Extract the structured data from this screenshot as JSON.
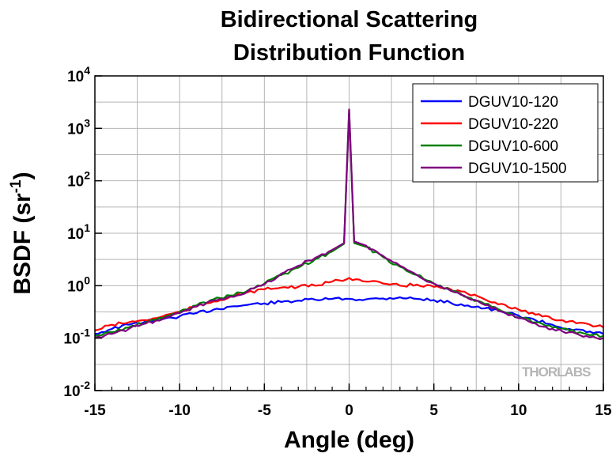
{
  "chart_data": {
    "type": "line",
    "title_lines": [
      "Bidirectional Scattering",
      "Distribution Function"
    ],
    "xlabel": "Angle (deg)",
    "ylabel": "BSDF (sr",
    "ylabel_sup": "-1",
    "ylabel_suffix": ")",
    "xlim": [
      -15,
      15
    ],
    "ylim": [
      0.01,
      10000
    ],
    "yscale": "log",
    "grid": true,
    "legend_position": "top-right",
    "watermark": "THORLABS",
    "x_ticks": [
      {
        "value": -15,
        "label": "-15"
      },
      {
        "value": -10,
        "label": "-10"
      },
      {
        "value": -5,
        "label": "-5"
      },
      {
        "value": 0,
        "label": "0"
      },
      {
        "value": 5,
        "label": "5"
      },
      {
        "value": 10,
        "label": "10"
      },
      {
        "value": 15,
        "label": "15"
      }
    ],
    "y_ticks": [
      {
        "exp": -2,
        "base": "10",
        "sup": "-2"
      },
      {
        "exp": -1,
        "base": "10",
        "sup": "-1"
      },
      {
        "exp": 0,
        "base": "10",
        "sup": "0"
      },
      {
        "exp": 1,
        "base": "10",
        "sup": "1"
      },
      {
        "exp": 2,
        "base": "10",
        "sup": "2"
      },
      {
        "exp": 3,
        "base": "10",
        "sup": "3"
      },
      {
        "exp": 4,
        "base": "10",
        "sup": "4"
      }
    ],
    "series": [
      {
        "name": "DGUV10-120",
        "color": "#0000ff",
        "x": [
          -15,
          -14,
          -13,
          -12,
          -11,
          -10,
          -9,
          -8,
          -7,
          -6,
          -5,
          -4,
          -3,
          -2,
          -1,
          0,
          1,
          2,
          3,
          4,
          5,
          6,
          7,
          8,
          9,
          10,
          11,
          12,
          13,
          14,
          15
        ],
        "y": [
          0.12,
          0.15,
          0.18,
          0.21,
          0.23,
          0.26,
          0.3,
          0.35,
          0.4,
          0.43,
          0.46,
          0.49,
          0.52,
          0.54,
          0.56,
          0.56,
          0.55,
          0.57,
          0.6,
          0.56,
          0.53,
          0.47,
          0.42,
          0.37,
          0.32,
          0.27,
          0.22,
          0.18,
          0.15,
          0.13,
          0.12
        ]
      },
      {
        "name": "DGUV10-220",
        "color": "#ff0000",
        "x": [
          -15,
          -14,
          -13,
          -12,
          -11,
          -10,
          -9,
          -8,
          -7,
          -6,
          -5,
          -4,
          -3,
          -2,
          -1,
          0,
          1,
          2,
          3,
          4,
          5,
          6,
          7,
          8,
          9,
          10,
          11,
          12,
          13,
          14,
          15
        ],
        "y": [
          0.14,
          0.18,
          0.2,
          0.22,
          0.26,
          0.32,
          0.4,
          0.5,
          0.62,
          0.75,
          0.85,
          0.92,
          0.95,
          1.0,
          1.2,
          1.4,
          1.2,
          1.1,
          1.0,
          1.05,
          0.95,
          0.85,
          0.7,
          0.55,
          0.45,
          0.35,
          0.28,
          0.23,
          0.21,
          0.19,
          0.16
        ]
      },
      {
        "name": "DGUV10-600",
        "color": "#008000",
        "x": [
          -15,
          -14,
          -13,
          -12,
          -11,
          -10,
          -9,
          -8,
          -7,
          -6,
          -5,
          -4,
          -3,
          -2,
          -1,
          -0.3,
          0,
          0.3,
          1,
          2,
          3,
          4,
          5,
          6,
          7,
          8,
          9,
          10,
          11,
          12,
          13,
          14,
          15
        ],
        "y": [
          0.11,
          0.13,
          0.16,
          0.2,
          0.24,
          0.32,
          0.42,
          0.55,
          0.65,
          0.8,
          1.1,
          1.6,
          2.2,
          3.2,
          4.5,
          6.3,
          2200,
          6.5,
          5.5,
          3.5,
          2.3,
          1.6,
          1.1,
          0.8,
          0.6,
          0.45,
          0.33,
          0.25,
          0.2,
          0.16,
          0.14,
          0.12,
          0.11
        ]
      },
      {
        "name": "DGUV10-1500",
        "color": "#800080",
        "x": [
          -15,
          -14,
          -13,
          -12,
          -11,
          -10,
          -9,
          -8,
          -7,
          -6,
          -5,
          -4,
          -3,
          -2,
          -1,
          -0.3,
          0,
          0.3,
          1,
          2,
          3,
          4,
          5,
          6,
          7,
          8,
          9,
          10,
          11,
          12,
          13,
          14,
          15
        ],
        "y": [
          0.1,
          0.12,
          0.15,
          0.19,
          0.23,
          0.3,
          0.4,
          0.52,
          0.62,
          0.78,
          1.05,
          1.7,
          2.4,
          3.4,
          4.8,
          6.5,
          2300,
          7.0,
          5.8,
          3.7,
          2.4,
          1.6,
          1.1,
          0.8,
          0.58,
          0.43,
          0.32,
          0.24,
          0.19,
          0.15,
          0.13,
          0.11,
          0.1
        ]
      }
    ]
  }
}
